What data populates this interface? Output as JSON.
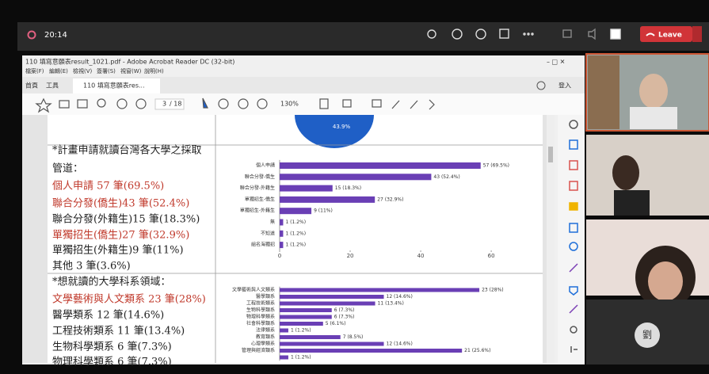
{
  "meeting": {
    "time": "20:14",
    "leave": "Leave",
    "avatar_initial": "劉"
  },
  "acrobat": {
    "window_title": "110 填寫意願表result_1021.pdf - Adobe Acrobat Reader DC (32-bit)",
    "menu": [
      "檔案(F)",
      "編輯(E)",
      "檢視(V)",
      "簽署(S)",
      "視窗(W)",
      "說明(H)"
    ],
    "tabs": [
      "首頁",
      "工具",
      "110 填寫意願表res..."
    ],
    "page_current": "3",
    "page_total": "/ 18",
    "zoom": "130%",
    "sign_in": "登入"
  },
  "pdf": {
    "pie_label": "43.9%",
    "lines": [
      {
        "text": "*計畫申請就讀台灣各大學之採取",
        "red": false
      },
      {
        "text": "管道：",
        "red": false
      },
      {
        "text": "個人申請 57 筆(69.5%)",
        "red": true
      },
      {
        "text": "聯合分發(僑生)43 筆(52.4%)",
        "red": true
      },
      {
        "text": "聯合分發(外籍生)15 筆(18.3%)",
        "red": false
      },
      {
        "text": "單獨招生(僑生)27 筆(32.9%)",
        "red": true
      },
      {
        "text": "單獨招生(外籍生)9 筆(11%)",
        "red": false
      },
      {
        "text": "其他 3 筆(3.6%)",
        "red": false
      },
      {
        "text": "*想就讀的大學科系領域：",
        "red": false
      },
      {
        "text": "文學藝術與人文類系 23 筆(28%)",
        "red": true
      },
      {
        "text": "醫學類系 12 筆(14.6%)",
        "red": false
      },
      {
        "text": "工程技術類系 11 筆(13.4%)",
        "red": false
      },
      {
        "text": "生物科學類系 6 筆(7.3%)",
        "red": false
      },
      {
        "text": "物理科學類系 6 筆(7.3%)",
        "red": false
      }
    ]
  },
  "chart_data": [
    {
      "type": "hbar",
      "color": "#6a3fb5",
      "categories": [
        "個人申請",
        "聯合分發-僑生",
        "聯合分發-外籍生",
        "單獨招生-僑生",
        "單獨招生-外籍生",
        "無",
        "不知道",
        "組名海獨招"
      ],
      "values": [
        57,
        43,
        15,
        27,
        9,
        1,
        1,
        1
      ],
      "value_labels": [
        "57 (69.5%)",
        "43 (52.4%)",
        "15 (18.3%)",
        "27 (32.9%)",
        "9 (11%)",
        "1 (1.2%)",
        "1 (1.2%)",
        "1 (1.2%)"
      ],
      "xlim": [
        0,
        62
      ],
      "xticks": [
        0,
        20,
        40,
        60
      ]
    },
    {
      "type": "hbar",
      "color": "#6a3fb5",
      "categories": [
        "文學藝術與人文類系",
        "醫學類系",
        "工程技術類系",
        "生物科學類系",
        "物理科學類系",
        "社會科學類系",
        "法律類系",
        "教育類系",
        "心理學類系",
        "管理與經濟類系",
        null
      ],
      "values": [
        23,
        12,
        11,
        6,
        6,
        5,
        1,
        7,
        12,
        21,
        1
      ],
      "value_labels": [
        "23 (28%)",
        "12 (14.6%)",
        "11 (13.4%)",
        "6 (7.3%)",
        "6 (7.3%)",
        "5 (6.1%)",
        "1 (1.2%)",
        "7 (8.5%)",
        "12 (14.6%)",
        "21 (25.6%)",
        "1 (1.2%)"
      ],
      "xlim": [
        0,
        25
      ]
    }
  ]
}
